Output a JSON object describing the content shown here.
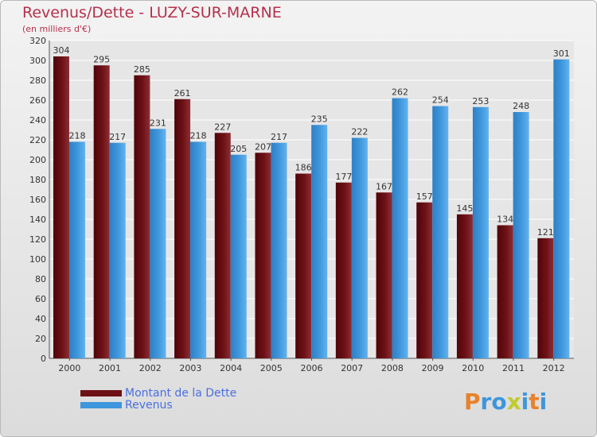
{
  "title": "Revenus/Dette - LUZY-SUR-MARNE",
  "subtitle": "(en milliers d'€)",
  "colors": {
    "dette": "#6e1116",
    "revenus": "#3e96dc"
  },
  "logo": {
    "text": "Proxiti",
    "letter_colors": [
      "#e8822b",
      "#3e96dc",
      "#3e96dc",
      "#c0cb2e",
      "#3e96dc",
      "#e8822b",
      "#3e96dc"
    ]
  },
  "chart_data": {
    "type": "bar",
    "categories": [
      "2000",
      "2001",
      "2002",
      "2003",
      "2004",
      "2005",
      "2006",
      "2007",
      "2008",
      "2009",
      "2010",
      "2011",
      "2012"
    ],
    "series": [
      {
        "name": "Montant de la Dette",
        "values": [
          304,
          295,
          285,
          261,
          227,
          207,
          186,
          177,
          167,
          157,
          145,
          134,
          121
        ]
      },
      {
        "name": "Revenus",
        "values": [
          218,
          217,
          231,
          218,
          205,
          217,
          235,
          222,
          262,
          254,
          253,
          248,
          301
        ]
      }
    ],
    "ylim": [
      0,
      320
    ],
    "yticks": [
      0,
      20,
      40,
      60,
      80,
      100,
      120,
      140,
      160,
      180,
      200,
      220,
      240,
      260,
      280,
      300,
      320
    ],
    "grid": true,
    "legend": "bottom-left"
  }
}
